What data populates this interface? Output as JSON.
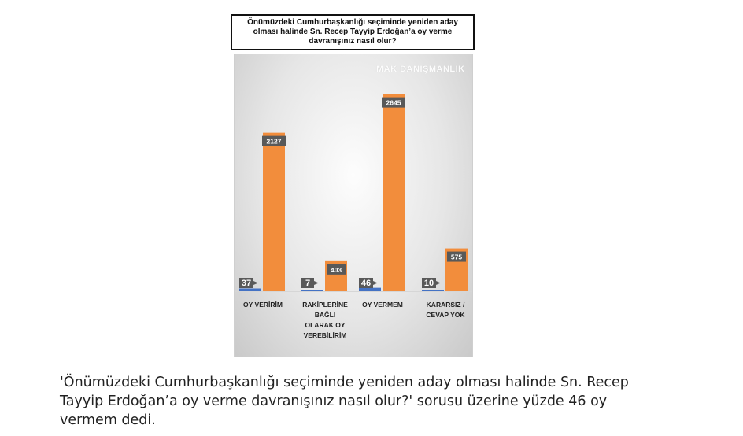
{
  "chart_data": {
    "type": "bar",
    "title": "Önümüzdeki Cumhurbaşkanlığı seçiminde yeniden aday olması halinde Sn. Recep Tayyip Erdoğan’a oy verme davranışınız nasıl olur?",
    "watermark": "MAK DANIŞMANLIK",
    "categories": [
      [
        "OY VERİRİM"
      ],
      [
        "RAKİPLERİNE",
        "BAĞLI",
        "OLARAK OY",
        "VEREBİLİRİM"
      ],
      [
        "OY VERMEM"
      ],
      [
        "KARARSIZ /",
        "CEVAP YOK"
      ]
    ],
    "series": [
      {
        "values": [
          37,
          7,
          46,
          10
        ],
        "color": "#4472c4"
      },
      {
        "values": [
          2127,
          403,
          2645,
          575
        ],
        "color": "#f28d3c"
      }
    ],
    "ylim": [
      0,
      3000
    ],
    "grid": false,
    "legend": "none"
  },
  "caption": "'Önümüzdeki Cumhurbaşkanlığı seçiminde yeniden aday olması halinde Sn. Recep Tayyip Erdoğan’a oy verme davranışınız nasıl olur?' sorusu üzerine yüzde 46 oy vermem dedi."
}
